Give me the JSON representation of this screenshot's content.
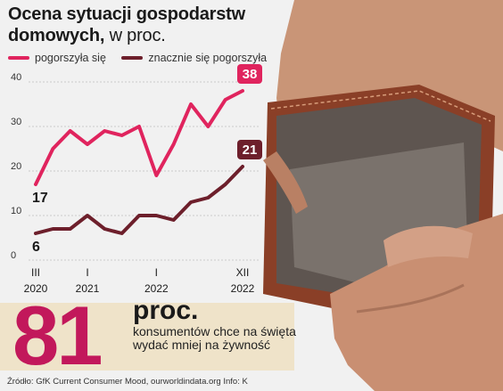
{
  "title": {
    "bold": "Ocena sytuacji gospodarstw domowych,",
    "unit": " w proc."
  },
  "legend": [
    {
      "label": "pogorszyła się",
      "color": "#e0245e"
    },
    {
      "label": "znacznie się pogorszyła",
      "color": "#6d1f2b"
    }
  ],
  "chart_data": {
    "type": "line",
    "ylim": [
      0,
      40
    ],
    "yticks": [
      "0",
      "10",
      "20",
      "30",
      "40"
    ],
    "xticks": [
      {
        "top": "III",
        "bottom": "2020"
      },
      {
        "top": "I",
        "bottom": "2021"
      },
      {
        "top": "I",
        "bottom": "2022"
      },
      {
        "top": "XII",
        "bottom": "2022"
      }
    ],
    "series": [
      {
        "name": "pogorszyła się",
        "color": "#e0245e",
        "values": [
          17,
          25,
          29,
          26,
          29,
          28,
          30,
          19,
          26,
          35,
          30,
          36,
          38
        ],
        "end_label": "38",
        "start_label": "17"
      },
      {
        "name": "znacznie się pogorszyła",
        "color": "#6d1f2b",
        "values": [
          6,
          7,
          7,
          10,
          7,
          6,
          10,
          10,
          9,
          13,
          14,
          17,
          21
        ],
        "end_label": "21",
        "start_label": "6"
      }
    ]
  },
  "highlight": {
    "number": "81",
    "unit": "proc.",
    "text": "konsumentów chce na święta wydać mniej na żywność"
  },
  "source": "Źródło: GfK Current Consumer Mood, ourworldindata.org Info: K",
  "colors": {
    "band": "#efe3c9",
    "accent": "#c2185b"
  }
}
